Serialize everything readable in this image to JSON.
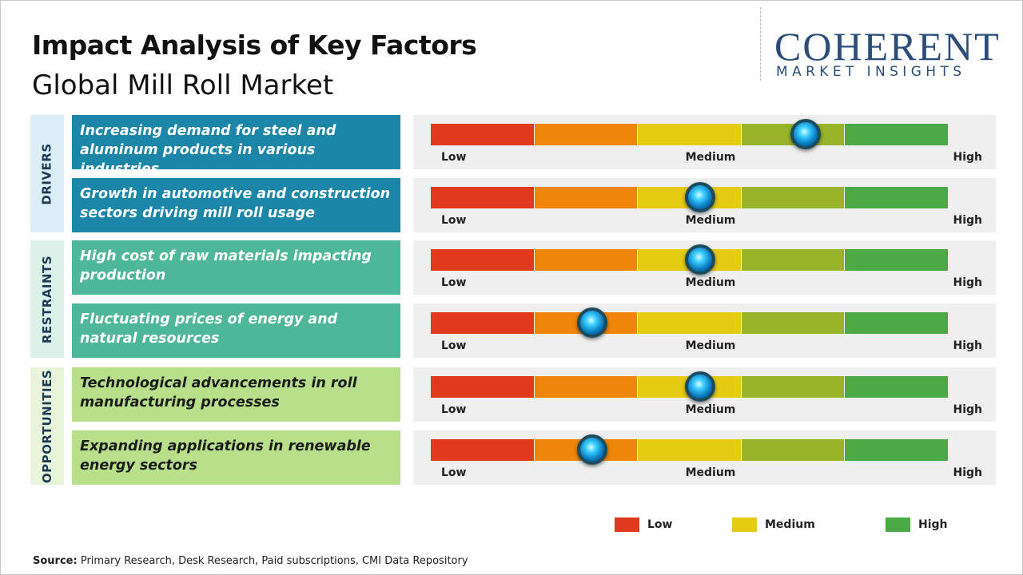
{
  "header": {
    "title": "Impact Analysis of Key Factors",
    "subtitle": "Global Mill Roll Market"
  },
  "logo": {
    "name": "COHERENT",
    "tagline": "MARKET INSIGHTS"
  },
  "scale_colors": [
    "#e0391d",
    "#ef860b",
    "#e6cb13",
    "#97b42b",
    "#4ba946"
  ],
  "scale_labels": {
    "low": "Low",
    "medium": "Medium",
    "high": "High"
  },
  "groups": [
    {
      "label": "DRIVERS",
      "color": "#1b86a8",
      "text_color": "#ffffff",
      "background": "#dcedf5",
      "factors": [
        {
          "text": "Increasing demand for steel and aluminum products in various industries",
          "level": 3.62
        },
        {
          "text": "Growth in automotive and construction sectors driving mill roll usage",
          "level": 2.6
        }
      ]
    },
    {
      "label": "RESTRAINTS",
      "color": "#4fb799",
      "text_color": "#ffffff",
      "background": "#ddf1ea",
      "factors": [
        {
          "text": "High cost of raw materials impacting production",
          "level": 2.6
        },
        {
          "text": "Fluctuating prices of energy and natural resources",
          "level": 1.56
        }
      ]
    },
    {
      "label": "OPPORTUNITIES",
      "color": "#b8e08b",
      "text_color": "#1b1b1b",
      "background": "#e8f5db",
      "factors": [
        {
          "text": "Technological advancements in roll manufacturing processes",
          "level": 2.6
        },
        {
          "text": "Expanding applications in renewable energy sectors",
          "level": 1.56
        }
      ]
    }
  ],
  "legend": [
    {
      "label": "Low",
      "color": "#e0391d"
    },
    {
      "label": "Medium",
      "color": "#e6cb13"
    },
    {
      "label": "High",
      "color": "#4ba946"
    }
  ],
  "source": {
    "label": "Source:",
    "text": "Primary Research, Desk Research, Paid subscriptions, CMI Data Repository"
  }
}
